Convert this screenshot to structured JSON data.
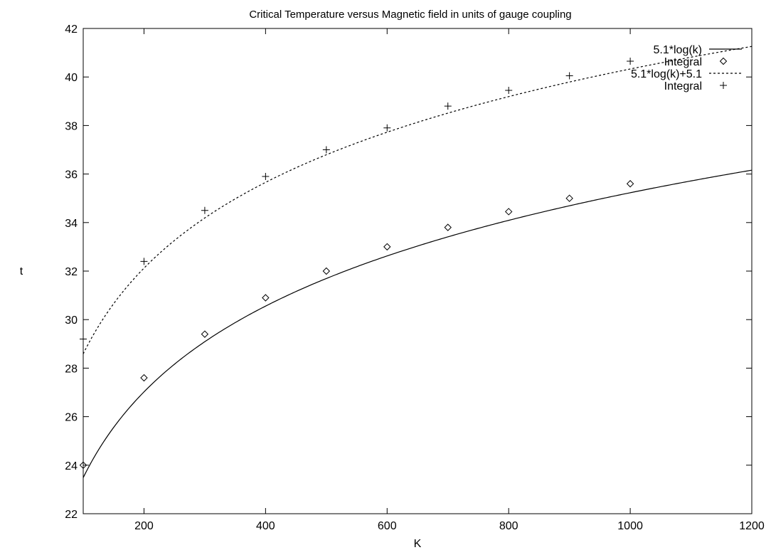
{
  "chart_data": {
    "type": "line",
    "title": "Critical Temperature versus Magnetic field in units of gauge coupling",
    "xlabel": "K",
    "ylabel": "t",
    "xlim": [
      100,
      1200
    ],
    "ylim": [
      22,
      42
    ],
    "xticks": [
      200,
      400,
      600,
      800,
      1000,
      1200
    ],
    "yticks": [
      22,
      24,
      26,
      28,
      30,
      32,
      34,
      36,
      38,
      40,
      42
    ],
    "grid": false,
    "legend_position": "top-right",
    "series": [
      {
        "name": "5.1*log(k)",
        "kind": "curve",
        "style": "solid",
        "coef": 5.1,
        "offset": 0
      },
      {
        "name": "Integral",
        "kind": "points",
        "marker": "diamond",
        "points": [
          [
            100,
            24.0
          ],
          [
            200,
            27.6
          ],
          [
            300,
            29.4
          ],
          [
            400,
            30.9
          ],
          [
            500,
            32.0
          ],
          [
            600,
            33.0
          ],
          [
            700,
            33.8
          ],
          [
            800,
            34.45
          ],
          [
            900,
            35.0
          ],
          [
            1000,
            35.6
          ]
        ]
      },
      {
        "name": "5.1*log(k)+5.1",
        "kind": "curve",
        "style": "dashed",
        "coef": 5.1,
        "offset": 5.1
      },
      {
        "name": "Integral",
        "kind": "points",
        "marker": "plus",
        "points": [
          [
            100,
            29.2
          ],
          [
            200,
            32.4
          ],
          [
            300,
            34.5
          ],
          [
            400,
            35.9
          ],
          [
            500,
            37.0
          ],
          [
            600,
            37.9
          ],
          [
            700,
            38.8
          ],
          [
            800,
            39.45
          ],
          [
            900,
            40.05
          ],
          [
            1000,
            40.65
          ]
        ]
      }
    ]
  }
}
